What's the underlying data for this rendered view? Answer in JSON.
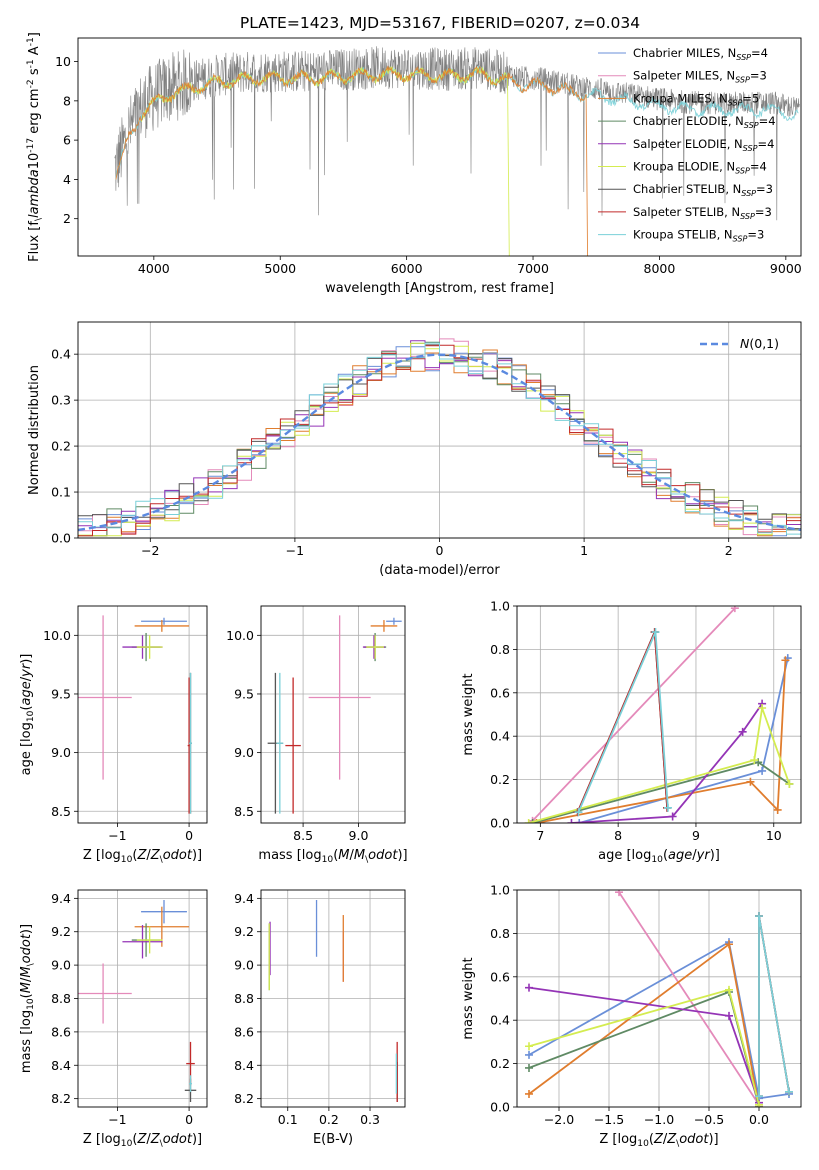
{
  "figure_title": "PLATE=1423, MJD=53167, FIBERID=0207, z=0.034",
  "colors": {
    "Chabrier MILES": "#6a8fd8",
    "Salpeter MILES": "#e48aba",
    "Kroupa MILES": "#e07d2e",
    "Chabrier ELODIE": "#5f8a64",
    "Salpeter ELODIE": "#9434b6",
    "Kroupa ELODIE": "#d4ec50",
    "Chabrier STELIB": "#555555",
    "Salpeter STELIB": "#c22a2a",
    "Kroupa STELIB": "#7ad0d8",
    "data": "#808080",
    "grid": "#b0b0b0"
  },
  "chart_data": [
    {
      "id": "spectrum",
      "type": "line",
      "ylabel": "Flux [f$_\\lambda$10$^{-17}$ erg cm$^{-2}$ s$^{-1}$ A$^{-1}$]",
      "xlabel": "wavelength [Angstrom, rest frame]",
      "xlim": [
        3400,
        9120
      ],
      "ylim": [
        0.1,
        11.2
      ],
      "xticks": [
        4000,
        5000,
        6000,
        7000,
        8000,
        9000
      ],
      "yticks": [
        2,
        4,
        6,
        8,
        10
      ],
      "grid": false,
      "legend_position": "right",
      "legend": [
        {
          "label": "Chabrier MILES, N$_{SSP}$=4",
          "color": "#6a8fd8"
        },
        {
          "label": "Salpeter MILES, N$_{SSP}$=3",
          "color": "#e48aba"
        },
        {
          "label": "Kroupa MILES, N$_{SSP}$=5",
          "color": "#e07d2e"
        },
        {
          "label": "Chabrier ELODIE, N$_{SSP}$=4",
          "color": "#5f8a64"
        },
        {
          "label": "Salpeter ELODIE, N$_{SSP}$=4",
          "color": "#9434b6"
        },
        {
          "label": "Kroupa ELODIE, N$_{SSP}$=4",
          "color": "#d4ec50"
        },
        {
          "label": "Chabrier STELIB, N$_{SSP}$=3",
          "color": "#555555"
        },
        {
          "label": "Salpeter STELIB, N$_{SSP}$=3",
          "color": "#c22a2a"
        },
        {
          "label": "Kroupa STELIB, N$_{SSP}$=3",
          "color": "#7ad0d8"
        }
      ],
      "data_envelope": {
        "x": [
          3700,
          3800,
          3900,
          4000,
          4100,
          4300,
          4500,
          4800,
          5000,
          5300,
          5500,
          5800,
          6000,
          6300,
          6600,
          6900,
          7100,
          7300,
          7500,
          7700,
          7900,
          8100,
          8300,
          8500,
          8700,
          8900,
          9100
        ],
        "y": [
          4.6,
          6.4,
          7.7,
          8.2,
          8.6,
          9.0,
          9.3,
          9.5,
          9.5,
          9.5,
          9.6,
          9.7,
          9.7,
          9.6,
          9.7,
          9.2,
          9.1,
          8.8,
          8.6,
          8.4,
          8.2,
          8.0,
          7.9,
          7.9,
          7.9,
          7.9,
          7.6
        ]
      },
      "model_tracks": [
        {
          "name": "Kroupa STELIB",
          "color": "#7ad0d8",
          "x_range": [
            3700,
            9100
          ]
        },
        {
          "name": "Kroupa ELODIE",
          "color": "#d4ec50",
          "x_range": [
            3900,
            6800
          ]
        },
        {
          "name": "Kroupa MILES",
          "color": "#e07d2e",
          "x_range": [
            3700,
            7420
          ]
        }
      ]
    },
    {
      "id": "residuals",
      "type": "line",
      "ylabel": "Normed distribution",
      "xlabel": "(data-model)/error",
      "xlim": [
        -2.5,
        2.5
      ],
      "ylim": [
        0,
        0.47
      ],
      "xticks": [
        -2,
        -1,
        0,
        1,
        2
      ],
      "yticks": [
        0.0,
        0.1,
        0.2,
        0.3,
        0.4
      ],
      "grid": true,
      "legend": [
        {
          "label": "$\\mathcal{N}(0,1)$",
          "color": "#5b8ae0",
          "style": "dashed"
        }
      ],
      "legend_position": "upper right",
      "gaussian": {
        "mean": 0,
        "sigma": 1
      },
      "hist_bins": {
        "start": -2.5,
        "width": 0.1,
        "count": 50
      },
      "hist_note": "nine step histograms, one per model, tracking N(0,1)"
    },
    {
      "id": "age_vs_Z",
      "type": "errorbar",
      "ylabel": "age  [log$_{10}$($age/yr$)]",
      "xlabel": "Z [log$_{10}$($Z/Z_\\odot$)]",
      "xlim": [
        -1.55,
        0.25
      ],
      "ylim": [
        8.4,
        10.25
      ],
      "xticks": [
        -1,
        0
      ],
      "yticks": [
        8.5,
        9.0,
        9.5,
        10.0
      ],
      "grid": true,
      "points": [
        {
          "model": "Chabrier MILES",
          "x": -0.35,
          "y": 10.12,
          "xerr": 0.32,
          "yerr": 0.03
        },
        {
          "model": "Salpeter MILES",
          "x": -1.2,
          "y": 9.47,
          "xerr": 0.4,
          "yerr": 0.7
        },
        {
          "model": "Kroupa MILES",
          "x": -0.38,
          "y": 10.08,
          "xerr": 0.38,
          "yerr": 0.05
        },
        {
          "model": "Chabrier ELODIE",
          "x": -0.6,
          "y": 9.9,
          "xerr": 0.2,
          "yerr": 0.12
        },
        {
          "model": "Salpeter ELODIE",
          "x": -0.65,
          "y": 9.9,
          "xerr": 0.28,
          "yerr": 0.1
        },
        {
          "model": "Kroupa ELODIE",
          "x": -0.55,
          "y": 9.9,
          "xerr": 0.18,
          "yerr": 0.1
        },
        {
          "model": "Chabrier STELIB",
          "x": 0.02,
          "y": 9.08,
          "xerr": 0.02,
          "yerr": 0.6
        },
        {
          "model": "Salpeter STELIB",
          "x": 0.0,
          "y": 9.06,
          "xerr": 0.02,
          "yerr": 0.58
        },
        {
          "model": "Kroupa STELIB",
          "x": 0.02,
          "y": 9.08,
          "xerr": 0.02,
          "yerr": 0.6
        }
      ]
    },
    {
      "id": "age_vs_mass",
      "type": "errorbar",
      "ylabel": "",
      "xlabel": "mass [log$_{10}$($M/M_\\odot$)]",
      "xlim": [
        8.12,
        9.42
      ],
      "ylim": [
        8.4,
        10.25
      ],
      "xticks": [
        8.5,
        9.0
      ],
      "yticks": [
        8.5,
        9.0,
        9.5,
        10.0
      ],
      "grid": true,
      "points": [
        {
          "model": "Chabrier MILES",
          "x": 9.32,
          "y": 10.12,
          "xerr": 0.07,
          "yerr": 0.03
        },
        {
          "model": "Salpeter MILES",
          "x": 8.83,
          "y": 9.47,
          "xerr": 0.28,
          "yerr": 0.7
        },
        {
          "model": "Kroupa MILES",
          "x": 9.23,
          "y": 10.08,
          "xerr": 0.12,
          "yerr": 0.05
        },
        {
          "model": "Chabrier ELODIE",
          "x": 9.15,
          "y": 9.9,
          "xerr": 0.1,
          "yerr": 0.12
        },
        {
          "model": "Salpeter ELODIE",
          "x": 9.14,
          "y": 9.9,
          "xerr": 0.1,
          "yerr": 0.1
        },
        {
          "model": "Kroupa ELODIE",
          "x": 9.15,
          "y": 9.9,
          "xerr": 0.08,
          "yerr": 0.1
        },
        {
          "model": "Chabrier STELIB",
          "x": 8.25,
          "y": 9.08,
          "xerr": 0.07,
          "yerr": 0.6
        },
        {
          "model": "Salpeter STELIB",
          "x": 8.41,
          "y": 9.06,
          "xerr": 0.07,
          "yerr": 0.58
        },
        {
          "model": "Kroupa STELIB",
          "x": 8.29,
          "y": 9.08,
          "xerr": 0.03,
          "yerr": 0.6
        }
      ]
    },
    {
      "id": "weight_vs_age",
      "type": "line",
      "ylabel": "mass weight",
      "xlabel": "age  [log$_{10}$($age/yr$)]",
      "xlim": [
        6.7,
        10.35
      ],
      "ylim": [
        0,
        1
      ],
      "xticks": [
        7,
        8,
        9,
        10
      ],
      "yticks": [
        0.0,
        0.2,
        0.4,
        0.6,
        0.8,
        1.0
      ],
      "grid": true,
      "series": [
        {
          "model": "Chabrier MILES",
          "x": [
            7.5,
            9.85,
            10.18
          ],
          "y": [
            0.0,
            0.24,
            0.76
          ]
        },
        {
          "model": "Salpeter MILES",
          "x": [
            6.9,
            9.5
          ],
          "y": [
            0.01,
            0.99
          ]
        },
        {
          "model": "Kroupa MILES",
          "x": [
            6.95,
            9.7,
            10.05,
            10.15
          ],
          "y": [
            0.0,
            0.19,
            0.06,
            0.75
          ]
        },
        {
          "model": "Chabrier ELODIE",
          "x": [
            6.9,
            9.8,
            10.2
          ],
          "y": [
            0.0,
            0.28,
            0.18
          ]
        },
        {
          "model": "Salpeter ELODIE",
          "x": [
            7.4,
            8.7,
            9.6,
            9.85
          ],
          "y": [
            0.0,
            0.03,
            0.42,
            0.55
          ]
        },
        {
          "model": "Kroupa ELODIE",
          "x": [
            6.85,
            9.75,
            9.85,
            10.2
          ],
          "y": [
            0.0,
            0.29,
            0.53,
            0.18
          ]
        },
        {
          "model": "Chabrier STELIB",
          "x": [
            7.48,
            8.47,
            8.63
          ],
          "y": [
            0.05,
            0.88,
            0.07
          ]
        },
        {
          "model": "Salpeter STELIB",
          "x": [
            7.48,
            8.47,
            8.63
          ],
          "y": [
            0.05,
            0.88,
            0.07
          ]
        },
        {
          "model": "Kroupa STELIB",
          "x": [
            7.49,
            8.48,
            8.64
          ],
          "y": [
            0.05,
            0.88,
            0.07
          ]
        }
      ]
    },
    {
      "id": "mass_vs_Z",
      "type": "errorbar",
      "ylabel": "mass [log$_{10}$($M/M_\\odot$)]",
      "xlabel": "Z [log$_{10}$($Z/Z_\\odot$)]",
      "xlim": [
        -1.55,
        0.25
      ],
      "ylim": [
        8.15,
        9.45
      ],
      "xticks": [
        -1,
        0
      ],
      "yticks": [
        8.2,
        8.4,
        8.6,
        8.8,
        9.0,
        9.2,
        9.4
      ],
      "grid": true,
      "points": [
        {
          "model": "Chabrier MILES",
          "x": -0.35,
          "y": 9.32,
          "xerr": 0.32,
          "yerr": 0.07
        },
        {
          "model": "Salpeter MILES",
          "x": -1.2,
          "y": 8.83,
          "xerr": 0.4,
          "yerr": 0.18
        },
        {
          "model": "Kroupa MILES",
          "x": -0.38,
          "y": 9.23,
          "xerr": 0.38,
          "yerr": 0.12
        },
        {
          "model": "Chabrier ELODIE",
          "x": -0.6,
          "y": 9.15,
          "xerr": 0.2,
          "yerr": 0.1
        },
        {
          "model": "Salpeter ELODIE",
          "x": -0.65,
          "y": 9.14,
          "xerr": 0.28,
          "yerr": 0.1
        },
        {
          "model": "Kroupa ELODIE",
          "x": -0.55,
          "y": 9.15,
          "xerr": 0.18,
          "yerr": 0.08
        },
        {
          "model": "Chabrier STELIB",
          "x": 0.02,
          "y": 8.25,
          "xerr": 0.08,
          "yerr": 0.07
        },
        {
          "model": "Salpeter STELIB",
          "x": 0.02,
          "y": 8.41,
          "xerr": 0.06,
          "yerr": 0.13
        },
        {
          "model": "Kroupa STELIB",
          "x": 0.02,
          "y": 8.29,
          "xerr": 0.02,
          "yerr": 0.05
        }
      ]
    },
    {
      "id": "mass_vs_ebv",
      "type": "errorbar",
      "ylabel": "",
      "xlabel": "E(B-V)",
      "xlim": [
        0.035,
        0.385
      ],
      "ylim": [
        8.15,
        9.45
      ],
      "xticks": [
        0.1,
        0.2,
        0.3
      ],
      "yticks": [
        8.2,
        8.4,
        8.6,
        8.8,
        9.0,
        9.2,
        9.4
      ],
      "grid": true,
      "points": [
        {
          "model": "Chabrier MILES",
          "x": 0.17,
          "y": 9.22,
          "xerr": 0.0,
          "yerr": 0.17
        },
        {
          "model": "Salpeter MILES",
          "x": 0.235,
          "y": 9.05,
          "xerr": 0.0,
          "yerr": 0.15
        },
        {
          "model": "Kroupa MILES",
          "x": 0.235,
          "y": 9.1,
          "xerr": 0.0,
          "yerr": 0.2
        },
        {
          "model": "Chabrier ELODIE",
          "x": 0.055,
          "y": 9.05,
          "xerr": 0.0,
          "yerr": 0.2
        },
        {
          "model": "Salpeter ELODIE",
          "x": 0.057,
          "y": 9.1,
          "xerr": 0.0,
          "yerr": 0.16
        },
        {
          "model": "Kroupa ELODIE",
          "x": 0.055,
          "y": 9.05,
          "xerr": 0.0,
          "yerr": 0.2
        },
        {
          "model": "Chabrier STELIB",
          "x": 0.366,
          "y": 8.3,
          "xerr": 0.0,
          "yerr": 0.12
        },
        {
          "model": "Salpeter STELIB",
          "x": 0.366,
          "y": 8.36,
          "xerr": 0.0,
          "yerr": 0.18
        },
        {
          "model": "Kroupa STELIB",
          "x": 0.364,
          "y": 8.35,
          "xerr": 0.0,
          "yerr": 0.12
        }
      ]
    },
    {
      "id": "weight_vs_Z",
      "type": "line",
      "ylabel": "mass weight",
      "xlabel": "Z [log$_{10}$($Z/Z_\\odot$)]",
      "xlim": [
        -2.42,
        0.42
      ],
      "ylim": [
        0,
        1
      ],
      "xticks": [
        -2.0,
        -1.5,
        -1.0,
        -0.5,
        0.0
      ],
      "yticks": [
        0.0,
        0.2,
        0.4,
        0.6,
        0.8,
        1.0
      ],
      "grid": true,
      "series": [
        {
          "model": "Chabrier MILES",
          "x": [
            -2.3,
            -0.3,
            0.0,
            0.3
          ],
          "y": [
            0.24,
            0.76,
            0.04,
            0.06
          ]
        },
        {
          "model": "Salpeter MILES",
          "x": [
            -1.4,
            0.0
          ],
          "y": [
            0.99,
            0.01
          ]
        },
        {
          "model": "Kroupa MILES",
          "x": [
            -2.3,
            -0.3,
            0.0
          ],
          "y": [
            0.06,
            0.75,
            0.0
          ]
        },
        {
          "model": "Chabrier ELODIE",
          "x": [
            -2.3,
            -0.3,
            0.0
          ],
          "y": [
            0.18,
            0.53,
            0.0
          ]
        },
        {
          "model": "Salpeter ELODIE",
          "x": [
            -2.3,
            -0.3,
            0.0
          ],
          "y": [
            0.55,
            0.42,
            0.02
          ]
        },
        {
          "model": "Kroupa ELODIE",
          "x": [
            -2.3,
            -0.3,
            0.0
          ],
          "y": [
            0.28,
            0.54,
            0.01
          ]
        },
        {
          "model": "Chabrier STELIB",
          "x": [
            0.0,
            0.0,
            0.3
          ],
          "y": [
            0.05,
            0.88,
            0.07
          ]
        },
        {
          "model": "Salpeter STELIB",
          "x": [
            0.0,
            0.0,
            0.3
          ],
          "y": [
            0.05,
            0.88,
            0.07
          ]
        },
        {
          "model": "Kroupa STELIB",
          "x": [
            0.0,
            0.0,
            0.3
          ],
          "y": [
            0.05,
            0.88,
            0.07
          ]
        }
      ]
    }
  ]
}
